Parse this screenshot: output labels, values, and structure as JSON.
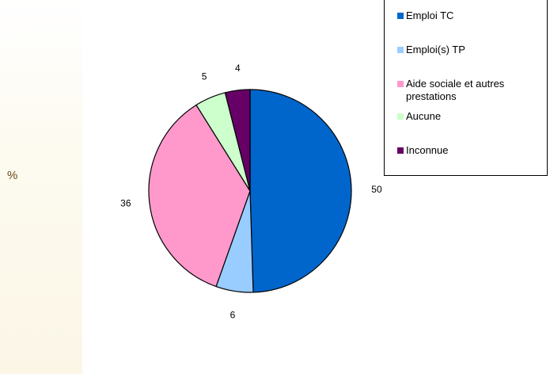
{
  "unit_label": "%",
  "colors": {
    "emploi_tc": "#0066cc",
    "emplois_tp": "#99ccff",
    "aide_sociale": "#ff99cc",
    "aucune": "#ccffcc",
    "inconnue": "#660066"
  },
  "chart_data": {
    "type": "pie",
    "categories": [
      "Emploi TC",
      "Emploi(s) TP",
      "Aide sociale et autres prestations",
      "Aucune",
      "Inconnue"
    ],
    "values": [
      50,
      6,
      36,
      5,
      4
    ],
    "data_labels": [
      "50",
      "6",
      "36",
      "5",
      "4"
    ],
    "legend": {
      "placement": "top-right",
      "entries": [
        {
          "label_lines": [
            "Emploi TC"
          ],
          "color": "#0066cc"
        },
        {
          "label_lines": [
            "Emploi(s) TP"
          ],
          "color": "#99ccff"
        },
        {
          "label_lines": [
            "Aide sociale et autres",
            "prestations"
          ],
          "color": "#ff99cc"
        },
        {
          "label_lines": [
            "Aucune"
          ],
          "color": "#ccffcc"
        },
        {
          "label_lines": [
            "Inconnue"
          ],
          "color": "#660066"
        }
      ]
    }
  }
}
